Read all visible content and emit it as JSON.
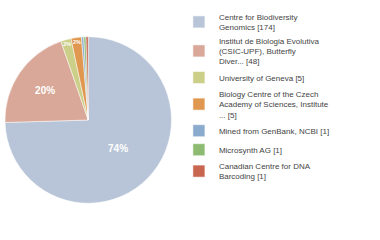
{
  "chart_data": {
    "type": "pie",
    "categories": [
      "Centre for Biodiversity\nGenomics [174]",
      "Institut de Biologia Evolutiva\n(CSIC-UPF), Butterfly\nDiver... [48]",
      "University of Geneva [5]",
      "Biology Centre of the Czech\nAcademy of Sciences, Institute\n... [5]",
      "Mined from GenBank, NCBI [1]",
      "Microsynth AG [1]",
      "Canadian Centre for DNA\nBarcoding [1]"
    ],
    "values": [
      74,
      20,
      2,
      2,
      0.43,
      0.43,
      0.43
    ],
    "value_labels": [
      "74%",
      "20%",
      "2%",
      "2%",
      null,
      null,
      null
    ],
    "data_labels": true,
    "colors": [
      "#b8c5d8",
      "#d9a898",
      "#cccf88",
      "#e09850",
      "#8aaace",
      "#8ebb72",
      "#c96650"
    ],
    "legend": "right"
  }
}
